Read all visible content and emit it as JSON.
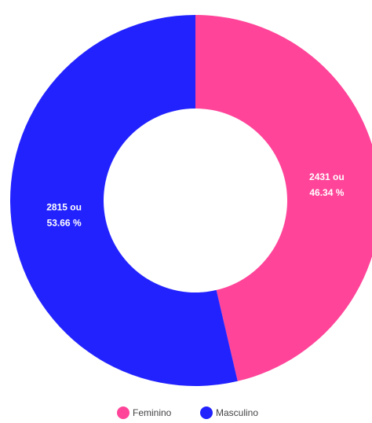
{
  "chart_data": {
    "type": "donut",
    "categories": [
      "Feminino",
      "Masculino"
    ],
    "values": [
      2431,
      2815
    ],
    "value_labels": [
      [
        "2431 ou",
        "46.34 %"
      ],
      [
        "2815 ou",
        "53.66 %"
      ]
    ],
    "colors": [
      "#ff4499",
      "#2222ff"
    ],
    "legend": "bottom"
  }
}
